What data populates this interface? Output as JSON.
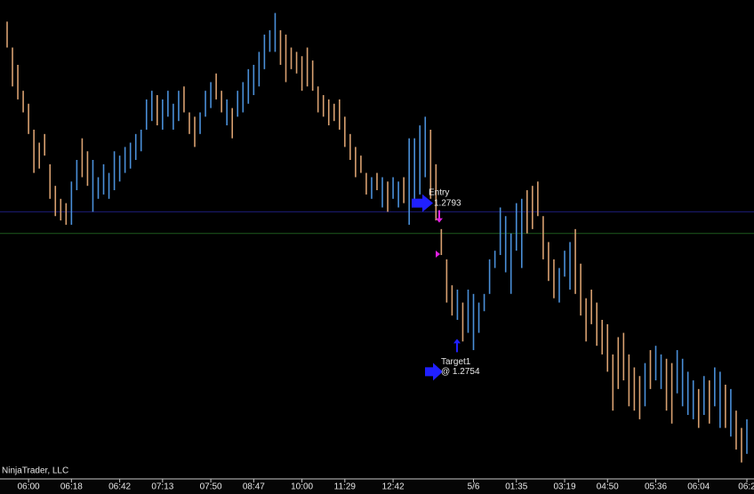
{
  "chart_data": {
    "type": "range_bar",
    "ylim": [
      1.2729,
      1.284
    ],
    "up_color": "#4a8fd8",
    "down_color": "#d8a070",
    "high": [
      1.2835,
      1.2829,
      1.2825,
      1.2819,
      1.2816,
      1.281,
      1.2807,
      1.2809,
      1.2802,
      1.2797,
      1.2794,
      1.2793,
      1.2798,
      1.2803,
      1.2808,
      1.2805,
      1.2803,
      1.2799,
      1.2802,
      1.28,
      1.2805,
      1.2804,
      1.2806,
      1.2807,
      1.2809,
      1.281,
      1.2817,
      1.2819,
      1.2818,
      1.2817,
      1.2819,
      1.2816,
      1.2819,
      1.282,
      1.2814,
      1.2813,
      1.2814,
      1.2819,
      1.2821,
      1.2823,
      1.2819,
      1.2817,
      1.2815,
      1.2819,
      1.2821,
      1.2824,
      1.2825,
      1.2828,
      1.2832,
      1.2833,
      1.2837,
      1.2833,
      1.2832,
      1.2829,
      1.2828,
      1.2827,
      1.2829,
      1.2826,
      1.282,
      1.2818,
      1.2817,
      1.2816,
      1.2817,
      1.2813,
      1.2809,
      1.2806,
      1.2804,
      1.28,
      1.2799,
      1.28,
      1.2799,
      1.2798,
      1.2799,
      1.2798,
      1.2799,
      1.2808,
      1.2808,
      1.2811,
      1.2813,
      1.281,
      1.2802,
      1.2787,
      1.278,
      1.2774,
      1.2773,
      1.277,
      1.2773,
      1.2772,
      1.277,
      1.2772,
      1.278,
      1.2782,
      1.2792,
      1.279,
      1.2786,
      1.2793,
      1.2794,
      1.2796,
      1.2797,
      1.2798,
      1.279,
      1.2784,
      1.278,
      1.2778,
      1.2782,
      1.2784,
      1.2787,
      1.2779,
      1.2771,
      1.2773,
      1.277,
      1.2766,
      1.2765,
      1.2758,
      1.2762,
      1.2763,
      1.2758,
      1.2755,
      1.2753,
      1.2756,
      1.2759,
      1.276,
      1.2758,
      1.2757,
      1.2756,
      1.2759,
      1.2757,
      1.2754,
      1.2752,
      1.275,
      1.2753,
      1.2752,
      1.2755,
      1.2754,
      1.2751,
      1.275,
      1.2745,
      1.2741,
      1.2743
    ],
    "low": [
      1.2829,
      1.282,
      1.2817,
      1.2814,
      1.2809,
      1.28,
      1.2801,
      1.2804,
      1.2794,
      1.279,
      1.2789,
      1.2788,
      1.2788,
      1.2796,
      1.2799,
      1.2797,
      1.2791,
      1.2794,
      1.2795,
      1.2794,
      1.2796,
      1.2798,
      1.28,
      1.2801,
      1.2803,
      1.2805,
      1.281,
      1.2812,
      1.2811,
      1.281,
      1.2813,
      1.281,
      1.2812,
      1.2814,
      1.2809,
      1.2806,
      1.2809,
      1.2813,
      1.2815,
      1.2817,
      1.2814,
      1.2811,
      1.2808,
      1.2813,
      1.2814,
      1.2816,
      1.2818,
      1.282,
      1.2824,
      1.2828,
      1.2828,
      1.2825,
      1.2821,
      1.2824,
      1.2823,
      1.2819,
      1.282,
      1.2819,
      1.2814,
      1.2813,
      1.2811,
      1.2812,
      1.281,
      1.2806,
      1.2803,
      1.2799,
      1.28,
      1.2795,
      1.2794,
      1.2796,
      1.2792,
      1.2791,
      1.2794,
      1.2792,
      1.2793,
      1.2788,
      1.2792,
      1.2795,
      1.2799,
      1.2794,
      1.2789,
      1.2781,
      1.277,
      1.2767,
      1.2766,
      1.2761,
      1.2763,
      1.2759,
      1.2763,
      1.2768,
      1.2772,
      1.2778,
      1.2781,
      1.2777,
      1.2772,
      1.2782,
      1.2778,
      1.2786,
      1.2787,
      1.279,
      1.278,
      1.2775,
      1.2771,
      1.277,
      1.2776,
      1.2773,
      1.2772,
      1.2767,
      1.2761,
      1.2765,
      1.276,
      1.2758,
      1.2754,
      1.2745,
      1.275,
      1.2752,
      1.2746,
      1.2745,
      1.2743,
      1.2746,
      1.275,
      1.2752,
      1.275,
      1.2745,
      1.2742,
      1.2749,
      1.2746,
      1.2744,
      1.2743,
      1.2741,
      1.2744,
      1.2742,
      1.2746,
      1.2741,
      1.2741,
      1.2739,
      1.2736,
      1.2733,
      1.2735
    ],
    "up": [
      false,
      false,
      false,
      false,
      false,
      false,
      false,
      false,
      false,
      false,
      false,
      false,
      true,
      true,
      false,
      false,
      true,
      true,
      true,
      true,
      true,
      true,
      true,
      true,
      true,
      true,
      true,
      true,
      false,
      true,
      true,
      true,
      true,
      false,
      false,
      false,
      true,
      true,
      true,
      false,
      false,
      true,
      false,
      true,
      true,
      true,
      true,
      true,
      true,
      true,
      true,
      false,
      false,
      false,
      false,
      false,
      false,
      false,
      false,
      false,
      false,
      false,
      false,
      false,
      false,
      false,
      false,
      false,
      true,
      false,
      true,
      false,
      true,
      true,
      false,
      true,
      true,
      true,
      true,
      false,
      false,
      false,
      false,
      false,
      true,
      false,
      true,
      true,
      true,
      true,
      true,
      true,
      true,
      true,
      true,
      true,
      true,
      false,
      false,
      false,
      false,
      false,
      false,
      true,
      true,
      true,
      false,
      false,
      false,
      false,
      false,
      false,
      false,
      false,
      false,
      false,
      false,
      false,
      false,
      true,
      false,
      true,
      true,
      false,
      false,
      true,
      true,
      true,
      true,
      false,
      true,
      false,
      true,
      true,
      false,
      true,
      false,
      false,
      true
    ],
    "lines": [
      {
        "price": 1.2791,
        "color": "#1c1c78"
      },
      {
        "price": 1.2786,
        "color": "#1e5a1e"
      }
    ],
    "xticks": [
      {
        "value": 4,
        "label": "06:00"
      },
      {
        "value": 12,
        "label": "06:18"
      },
      {
        "value": 21,
        "label": "06:42"
      },
      {
        "value": 29,
        "label": "07:13"
      },
      {
        "value": 38,
        "label": "07:50"
      },
      {
        "value": 46,
        "label": "08:47"
      },
      {
        "value": 55,
        "label": "10:00"
      },
      {
        "value": 63,
        "label": "11:29"
      },
      {
        "value": 72,
        "label": "12:42"
      },
      {
        "value": 87,
        "label": "5/6"
      },
      {
        "value": 95,
        "label": "01:35"
      },
      {
        "value": 104,
        "label": "03:19"
      },
      {
        "value": 112,
        "label": "04:50"
      },
      {
        "value": 121,
        "label": "05:36"
      },
      {
        "value": 129,
        "label": "06:04"
      },
      {
        "value": 138,
        "label": "06:2"
      }
    ],
    "entry": {
      "label": "Entry",
      "price": 1.2793
    },
    "target": {
      "label": "Target1",
      "price": {
        "value": 1.2754,
        "label": "@ 1.2754"
      }
    },
    "copyright": "NinjaTrader, LLC"
  }
}
